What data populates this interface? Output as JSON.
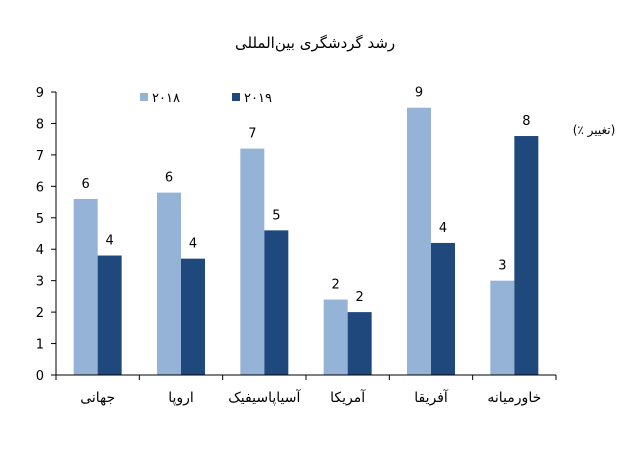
{
  "chart_data": {
    "type": "bar",
    "title": "رشد گردشگری بین‌المللی",
    "ylabel": "(تغییر ٪)",
    "xlabel": "",
    "ylim": [
      0,
      9
    ],
    "yticks": [
      0,
      1,
      2,
      3,
      4,
      5,
      6,
      7,
      8,
      9
    ],
    "categories": [
      "جهانی",
      "اروپا",
      "آسیاپاسیفیک",
      "آمریکا",
      "آفریقا",
      "خاورمیانه"
    ],
    "series": [
      {
        "name": "۲۰۱۸",
        "color": "#95b3d7",
        "values": [
          5.6,
          5.8,
          7.2,
          2.4,
          8.5,
          3.0
        ],
        "labels": [
          "6",
          "6",
          "7",
          "2",
          "9",
          "3"
        ]
      },
      {
        "name": "۲۰۱۹",
        "color": "#1f497d",
        "values": [
          3.8,
          3.7,
          4.6,
          2.0,
          4.2,
          7.6
        ],
        "labels": [
          "4",
          "4",
          "5",
          "2",
          "4",
          "8"
        ]
      }
    ],
    "legend_position": "top",
    "grid": false
  }
}
